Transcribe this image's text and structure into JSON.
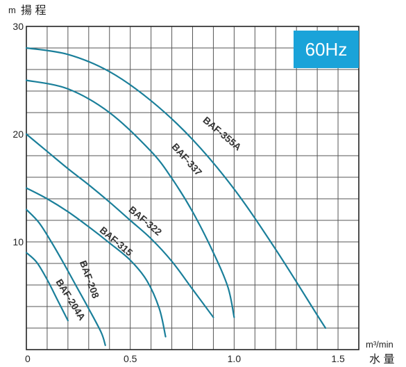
{
  "chart_data": {
    "type": "line",
    "title": "",
    "ylabel_unit": "m",
    "ylabel": "揚 程",
    "xlabel_unit": "m³/min",
    "xlabel": "水 量",
    "frequency_badge": "60Hz",
    "badge_color": "#1aa3d9",
    "curve_color": "#1a7f9a",
    "grid": true,
    "xlim": [
      0,
      1.6
    ],
    "ylim": [
      0,
      30
    ],
    "x_grid_step": 0.1,
    "y_grid_step": 2,
    "x_ticks": [
      {
        "value": 0,
        "label": "0"
      },
      {
        "value": 0.5,
        "label": "0.5"
      },
      {
        "value": 1.0,
        "label": "1.0"
      },
      {
        "value": 1.5,
        "label": "1.5"
      }
    ],
    "y_ticks": [
      {
        "value": 10,
        "label": "10"
      },
      {
        "value": 20,
        "label": "20"
      },
      {
        "value": 30,
        "label": "30"
      }
    ],
    "series": [
      {
        "name": "BAF-355A",
        "x": [
          0,
          0.2,
          0.4,
          0.6,
          0.8,
          1.0,
          1.2,
          1.4,
          1.44
        ],
        "y": [
          28,
          27.4,
          25.8,
          23.1,
          19.5,
          14.9,
          9.3,
          3.2,
          2.0
        ],
        "label_x": 0.94,
        "label_y": 20.0,
        "label_angle": 40
      },
      {
        "name": "BAF-337",
        "x": [
          0,
          0.2,
          0.4,
          0.6,
          0.7,
          0.8,
          0.9,
          0.97,
          1.0
        ],
        "y": [
          25,
          24.2,
          22.0,
          18.4,
          15.9,
          12.8,
          9.0,
          5.8,
          3.0
        ],
        "label_x": 0.77,
        "label_y": 17.6,
        "label_angle": 48
      },
      {
        "name": "BAF-322",
        "x": [
          0,
          0.1,
          0.2,
          0.3,
          0.4,
          0.5,
          0.6,
          0.7,
          0.8,
          0.9
        ],
        "y": [
          20,
          18.4,
          16.8,
          15.3,
          13.7,
          12.0,
          10.3,
          8.2,
          5.6,
          3.0
        ],
        "label_x": 0.57,
        "label_y": 11.9,
        "label_angle": 40
      },
      {
        "name": "BAF-315",
        "x": [
          0,
          0.1,
          0.2,
          0.3,
          0.4,
          0.5,
          0.58,
          0.64,
          0.67
        ],
        "y": [
          15,
          14.0,
          12.8,
          11.4,
          9.9,
          8.3,
          6.4,
          3.8,
          1.2
        ],
        "label_x": 0.43,
        "label_y": 10.0,
        "label_angle": 40
      },
      {
        "name": "BAF-208",
        "x": [
          0,
          0.06,
          0.12,
          0.18,
          0.24,
          0.3,
          0.36,
          0.38
        ],
        "y": [
          13,
          11.8,
          10.0,
          8.0,
          5.9,
          3.8,
          1.6,
          0.4
        ],
        "label_x": 0.3,
        "label_y": 6.5,
        "label_angle": 70
      },
      {
        "name": "BAF-204A",
        "x": [
          0,
          0.05,
          0.1,
          0.15,
          0.2
        ],
        "y": [
          9,
          8.1,
          6.5,
          4.6,
          2.7
        ],
        "label_x": 0.21,
        "label_y": 4.6,
        "label_angle": 58
      }
    ]
  }
}
